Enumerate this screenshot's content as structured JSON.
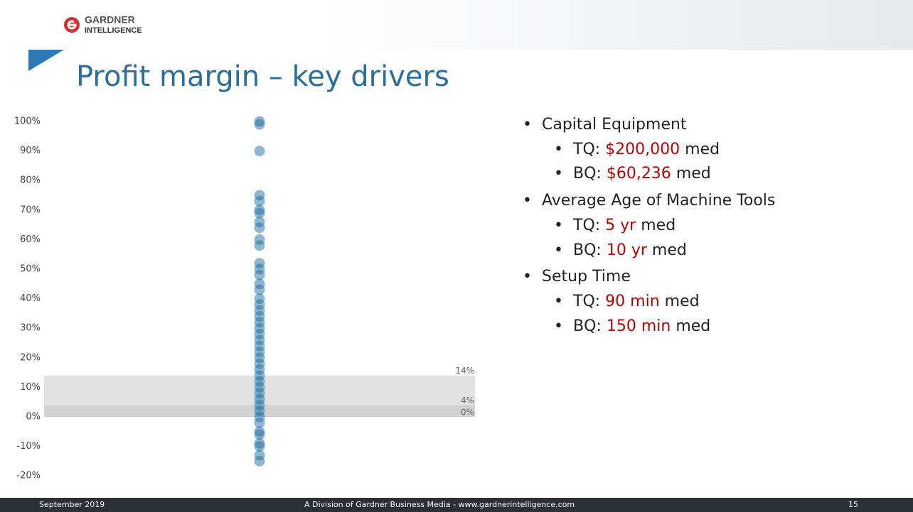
{
  "header": {
    "logo_top": "GARDNER",
    "logo_bottom": "INTELLIGENCE",
    "title": "Profit margin – key drivers"
  },
  "chart_data": {
    "type": "strip",
    "values": [
      100,
      99,
      90,
      75,
      73,
      70,
      69,
      66,
      64,
      60,
      58,
      52,
      50,
      48,
      45,
      43,
      40,
      38,
      36,
      34,
      32,
      30,
      28,
      26,
      24,
      22,
      20,
      18,
      16,
      14,
      12,
      10,
      8,
      6,
      4,
      2,
      0,
      -2,
      -5,
      -6,
      -9,
      -10,
      -13,
      -15
    ],
    "color": "#1f6fa0",
    "ylim": [
      -22,
      103
    ],
    "yticks": [
      {
        "value": -20,
        "label": "-20%"
      },
      {
        "value": -10,
        "label": "-10%"
      },
      {
        "value": 0,
        "label": "0%"
      },
      {
        "value": 10,
        "label": "10%"
      },
      {
        "value": 20,
        "label": "20%"
      },
      {
        "value": 30,
        "label": "30%"
      },
      {
        "value": 40,
        "label": "40%"
      },
      {
        "value": 50,
        "label": "50%"
      },
      {
        "value": 60,
        "label": "60%"
      },
      {
        "value": 70,
        "label": "70%"
      },
      {
        "value": 80,
        "label": "80%"
      },
      {
        "value": 90,
        "label": "90%"
      },
      {
        "value": 100,
        "label": "100%"
      }
    ],
    "bands": [
      {
        "from": 4,
        "to": 14,
        "color": "#e2e2e2"
      },
      {
        "from": 0,
        "to": 4,
        "color": "#d2d2d2"
      }
    ],
    "reference_labels": [
      {
        "value": 14,
        "label": "14%"
      },
      {
        "value": 4,
        "label": "4%"
      },
      {
        "value": 0,
        "label": "0%"
      }
    ]
  },
  "bullets": [
    {
      "text": "Capital Equipment",
      "items": [
        {
          "prefix": "TQ:",
          "value": "$200,000",
          "suffix": "med"
        },
        {
          "prefix": "BQ:",
          "value": "$60,236",
          "suffix": "med"
        }
      ]
    },
    {
      "text": "Average Age of Machine Tools",
      "items": [
        {
          "prefix": "TQ:",
          "value": "5 yr",
          "suffix": "med"
        },
        {
          "prefix": "BQ:",
          "value": "10 yr",
          "suffix": "med"
        }
      ]
    },
    {
      "text": "Setup Time",
      "items": [
        {
          "prefix": "TQ:",
          "value": "90 min",
          "suffix": "med"
        },
        {
          "prefix": "BQ:",
          "value": "150 min",
          "suffix": "med"
        }
      ]
    }
  ],
  "footer": {
    "date": "September 2019",
    "center": "A Division of Gardner Business Media - www.gardnerintelligence.com",
    "page": "15"
  }
}
